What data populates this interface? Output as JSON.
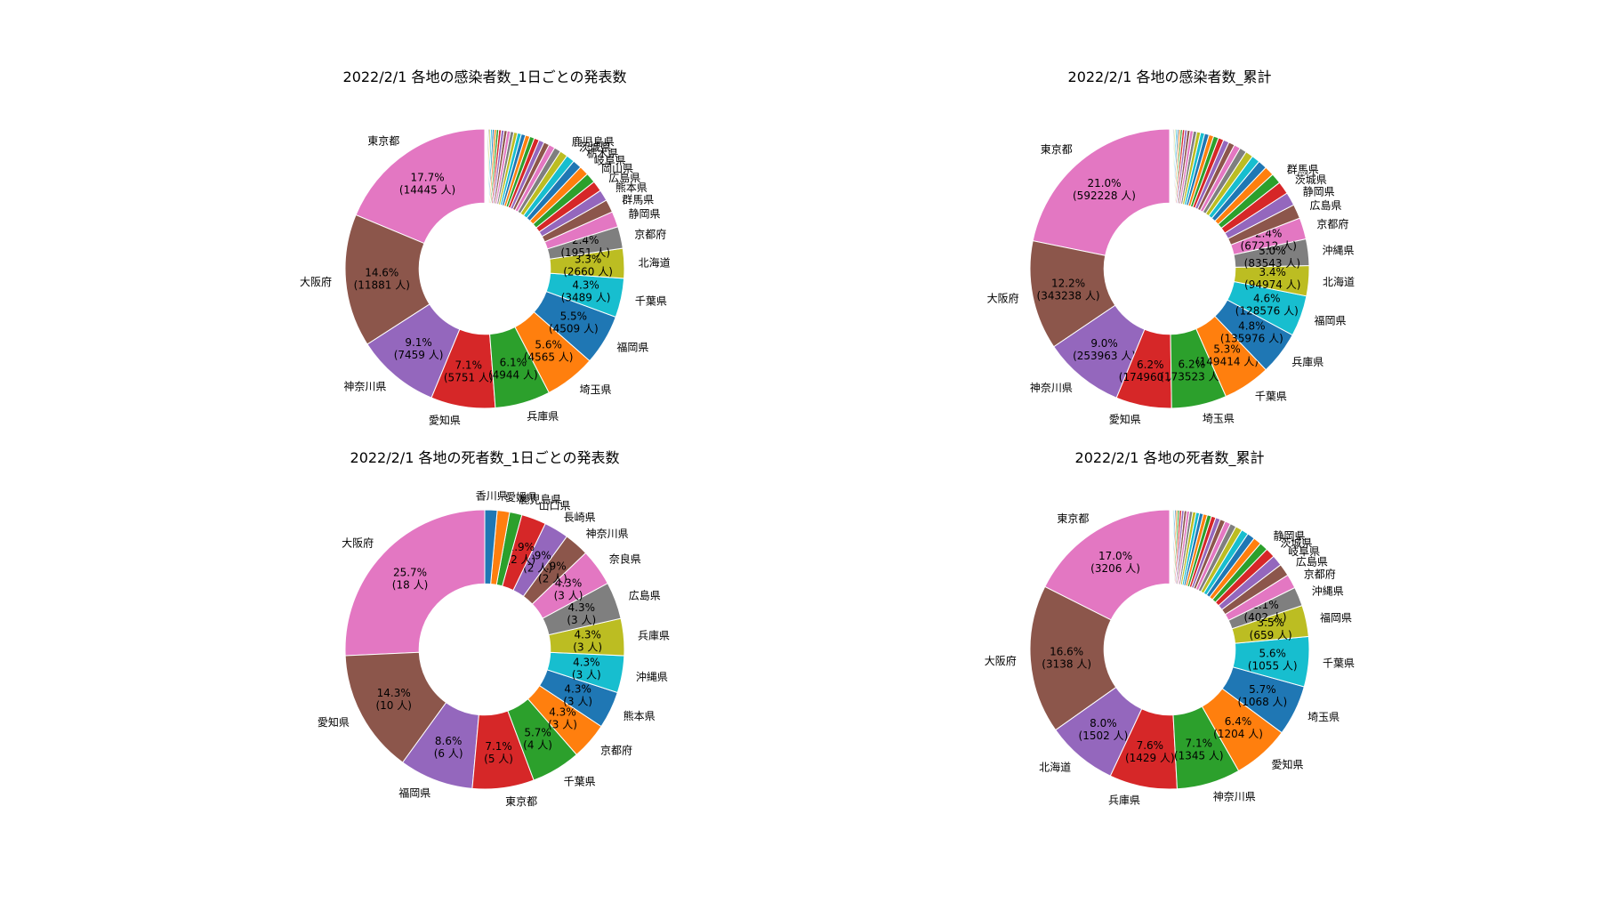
{
  "chart_data": [
    {
      "type": "pie",
      "title": "2022/2/1 各地の感染者数_1日ごとの発表数",
      "slices": [
        {
          "label": "東京都",
          "value": 14445,
          "pct": "17.7%",
          "count": "(14445 人)",
          "color": "#e377c2"
        },
        {
          "label": "大阪府",
          "value": 11881,
          "pct": "14.6%",
          "count": "(11881 人)",
          "color": "#8c564b"
        },
        {
          "label": "神奈川県",
          "value": 7459,
          "pct": "9.1%",
          "count": "(7459 人)",
          "color": "#9467bd"
        },
        {
          "label": "愛知県",
          "value": 5751,
          "pct": "7.1%",
          "count": "(5751 人)",
          "color": "#d62728"
        },
        {
          "label": "兵庫県",
          "value": 4944,
          "pct": "6.1%",
          "count": "(4944 人)",
          "color": "#2ca02c"
        },
        {
          "label": "埼玉県",
          "value": 4565,
          "pct": "5.6%",
          "count": "(4565 人)",
          "color": "#ff7f0e"
        },
        {
          "label": "福岡県",
          "value": 4509,
          "pct": "5.5%",
          "count": "(4509 人)",
          "color": "#1f77b4"
        },
        {
          "label": "千葉県",
          "value": 3489,
          "pct": "4.3%",
          "count": "(3489 人)",
          "color": "#17becf"
        },
        {
          "label": "北海道",
          "value": 2660,
          "pct": "3.3%",
          "count": "(2660 人)",
          "color": "#bcbd22"
        },
        {
          "label": "京都府",
          "value": 1951,
          "pct": "2.4%",
          "count": "(1951 人)",
          "color": "#7f7f7f"
        },
        {
          "label": "静岡県",
          "value": 1400,
          "color": "#e377c2"
        },
        {
          "label": "群馬県",
          "value": 1150,
          "color": "#8c564b"
        },
        {
          "label": "熊本県",
          "value": 1000,
          "color": "#9467bd"
        },
        {
          "label": "広島県",
          "value": 950,
          "color": "#d62728"
        },
        {
          "label": "岡山県",
          "value": 900,
          "color": "#2ca02c"
        },
        {
          "label": "岐阜県",
          "value": 850,
          "color": "#ff7f0e"
        },
        {
          "label": "栃木県",
          "value": 800,
          "color": "#1f77b4"
        },
        {
          "label": "茨城県",
          "value": 750,
          "color": "#17becf"
        },
        {
          "label": "鹿児島県",
          "value": 700,
          "color": "#bcbd22"
        },
        {
          "label": "",
          "value": 600,
          "color": "#7f7f7f"
        },
        {
          "label": "",
          "value": 550,
          "color": "#e377c2"
        },
        {
          "label": "",
          "value": 500,
          "color": "#8c564b"
        },
        {
          "label": "",
          "value": 480,
          "color": "#9467bd"
        },
        {
          "label": "",
          "value": 450,
          "color": "#d62728"
        },
        {
          "label": "",
          "value": 420,
          "color": "#2ca02c"
        },
        {
          "label": "",
          "value": 400,
          "color": "#ff7f0e"
        },
        {
          "label": "",
          "value": 380,
          "color": "#1f77b4"
        },
        {
          "label": "",
          "value": 350,
          "color": "#17becf"
        },
        {
          "label": "",
          "value": 330,
          "color": "#bcbd22"
        },
        {
          "label": "",
          "value": 310,
          "color": "#7f7f7f"
        },
        {
          "label": "",
          "value": 290,
          "color": "#e377c2"
        },
        {
          "label": "",
          "value": 270,
          "color": "#8c564b"
        },
        {
          "label": "",
          "value": 250,
          "color": "#9467bd"
        },
        {
          "label": "",
          "value": 230,
          "color": "#d62728"
        },
        {
          "label": "",
          "value": 210,
          "color": "#2ca02c"
        },
        {
          "label": "",
          "value": 190,
          "color": "#ff7f0e"
        },
        {
          "label": "",
          "value": 170,
          "color": "#1f77b4"
        },
        {
          "label": "",
          "value": 150,
          "color": "#17becf"
        },
        {
          "label": "",
          "value": 130,
          "color": "#bcbd22"
        },
        {
          "label": "",
          "value": 110,
          "color": "#7f7f7f"
        },
        {
          "label": "",
          "value": 90,
          "color": "#e377c2"
        },
        {
          "label": "",
          "value": 70,
          "color": "#8c564b"
        },
        {
          "label": "",
          "value": 50,
          "color": "#9467bd"
        },
        {
          "label": "",
          "value": 30,
          "color": "#d62728"
        },
        {
          "label": "",
          "value": 20,
          "color": "#2ca02c"
        },
        {
          "label": "",
          "value": 10,
          "color": "#ff7f0e"
        },
        {
          "label": "",
          "value": 5,
          "color": "#1f77b4"
        }
      ]
    },
    {
      "type": "pie",
      "title": "2022/2/1 各地の感染者数_累計",
      "slices": [
        {
          "label": "東京都",
          "value": 592228,
          "pct": "21.0%",
          "count": "(592228 人)",
          "color": "#e377c2"
        },
        {
          "label": "大阪府",
          "value": 343238,
          "pct": "12.2%",
          "count": "(343238 人)",
          "color": "#8c564b"
        },
        {
          "label": "神奈川県",
          "value": 253963,
          "pct": "9.0%",
          "count": "(253963 人)",
          "color": "#9467bd"
        },
        {
          "label": "愛知県",
          "value": 174960,
          "pct": "6.2%",
          "count": "(174960 人)",
          "color": "#d62728"
        },
        {
          "label": "埼玉県",
          "value": 173523,
          "pct": "6.2%",
          "count": "(173523 人)",
          "color": "#2ca02c"
        },
        {
          "label": "千葉県",
          "value": 149414,
          "pct": "5.3%",
          "count": "(149414 人)",
          "color": "#ff7f0e"
        },
        {
          "label": "兵庫県",
          "value": 135976,
          "pct": "4.8%",
          "count": "(135976 人)",
          "color": "#1f77b4"
        },
        {
          "label": "福岡県",
          "value": 128576,
          "pct": "4.6%",
          "count": "(128576 人)",
          "color": "#17becf"
        },
        {
          "label": "北海道",
          "value": 94974,
          "pct": "3.4%",
          "count": "(94974 人)",
          "color": "#bcbd22"
        },
        {
          "label": "沖縄県",
          "value": 83543,
          "pct": "3.0%",
          "count": "(83543 人)",
          "color": "#7f7f7f"
        },
        {
          "label": "京都府",
          "value": 67212,
          "pct": "2.4%",
          "count": "(67212 人)",
          "color": "#e377c2"
        },
        {
          "label": "広島県",
          "value": 45000,
          "color": "#8c564b"
        },
        {
          "label": "静岡県",
          "value": 42000,
          "color": "#9467bd"
        },
        {
          "label": "茨城県",
          "value": 40000,
          "color": "#d62728"
        },
        {
          "label": "群馬県",
          "value": 33000,
          "color": "#2ca02c"
        },
        {
          "label": "",
          "value": 30000,
          "color": "#ff7f0e"
        },
        {
          "label": "",
          "value": 28000,
          "color": "#1f77b4"
        },
        {
          "label": "",
          "value": 26000,
          "color": "#17becf"
        },
        {
          "label": "",
          "value": 24000,
          "color": "#bcbd22"
        },
        {
          "label": "",
          "value": 22000,
          "color": "#7f7f7f"
        },
        {
          "label": "",
          "value": 20000,
          "color": "#e377c2"
        },
        {
          "label": "",
          "value": 19000,
          "color": "#8c564b"
        },
        {
          "label": "",
          "value": 18000,
          "color": "#9467bd"
        },
        {
          "label": "",
          "value": 17000,
          "color": "#d62728"
        },
        {
          "label": "",
          "value": 16000,
          "color": "#2ca02c"
        },
        {
          "label": "",
          "value": 15000,
          "color": "#ff7f0e"
        },
        {
          "label": "",
          "value": 14000,
          "color": "#1f77b4"
        },
        {
          "label": "",
          "value": 13000,
          "color": "#17becf"
        },
        {
          "label": "",
          "value": 12000,
          "color": "#bcbd22"
        },
        {
          "label": "",
          "value": 11000,
          "color": "#7f7f7f"
        },
        {
          "label": "",
          "value": 10000,
          "color": "#e377c2"
        },
        {
          "label": "",
          "value": 9000,
          "color": "#8c564b"
        },
        {
          "label": "",
          "value": 8000,
          "color": "#9467bd"
        },
        {
          "label": "",
          "value": 7000,
          "color": "#d62728"
        },
        {
          "label": "",
          "value": 6000,
          "color": "#2ca02c"
        },
        {
          "label": "",
          "value": 5500,
          "color": "#ff7f0e"
        },
        {
          "label": "",
          "value": 5000,
          "color": "#1f77b4"
        },
        {
          "label": "",
          "value": 4500,
          "color": "#17becf"
        },
        {
          "label": "",
          "value": 4000,
          "color": "#bcbd22"
        },
        {
          "label": "",
          "value": 3500,
          "color": "#7f7f7f"
        },
        {
          "label": "",
          "value": 3000,
          "color": "#e377c2"
        },
        {
          "label": "",
          "value": 2500,
          "color": "#8c564b"
        },
        {
          "label": "",
          "value": 2000,
          "color": "#9467bd"
        },
        {
          "label": "",
          "value": 1500,
          "color": "#d62728"
        },
        {
          "label": "",
          "value": 1000,
          "color": "#2ca02c"
        },
        {
          "label": "",
          "value": 800,
          "color": "#ff7f0e"
        },
        {
          "label": "",
          "value": 500,
          "color": "#1f77b4"
        }
      ]
    },
    {
      "type": "pie",
      "title": "2022/2/1 各地の死者数_1日ごとの発表数",
      "slices": [
        {
          "label": "大阪府",
          "value": 18,
          "pct": "25.7%",
          "count": "(18 人)",
          "color": "#e377c2"
        },
        {
          "label": "愛知県",
          "value": 10,
          "pct": "14.3%",
          "count": "(10 人)",
          "color": "#8c564b"
        },
        {
          "label": "福岡県",
          "value": 6,
          "pct": "8.6%",
          "count": "(6 人)",
          "color": "#9467bd"
        },
        {
          "label": "東京都",
          "value": 5,
          "pct": "7.1%",
          "count": "(5 人)",
          "color": "#d62728"
        },
        {
          "label": "千葉県",
          "value": 4,
          "pct": "5.7%",
          "count": "(4 人)",
          "color": "#2ca02c"
        },
        {
          "label": "京都府",
          "value": 3,
          "pct": "4.3%",
          "count": "(3 人)",
          "color": "#ff7f0e"
        },
        {
          "label": "熊本県",
          "value": 3,
          "pct": "4.3%",
          "count": "(3 人)",
          "color": "#1f77b4"
        },
        {
          "label": "沖縄県",
          "value": 3,
          "pct": "4.3%",
          "count": "(3 人)",
          "color": "#17becf"
        },
        {
          "label": "兵庫県",
          "value": 3,
          "pct": "4.3%",
          "count": "(3 人)",
          "color": "#bcbd22"
        },
        {
          "label": "広島県",
          "value": 3,
          "pct": "4.3%",
          "count": "(3 人)",
          "color": "#7f7f7f"
        },
        {
          "label": "奈良県",
          "value": 3,
          "pct": "4.3%",
          "count": "(3 人)",
          "color": "#e377c2"
        },
        {
          "label": "神奈川県",
          "value": 2,
          "pct": "2.9%",
          "count": "(2 人)",
          "color": "#8c564b"
        },
        {
          "label": "長崎県",
          "value": 2,
          "pct": "2.9%",
          "count": "(2 人)",
          "color": "#9467bd"
        },
        {
          "label": "山口県",
          "value": 2,
          "pct": "2.9%",
          "count": "(2 人)",
          "color": "#d62728"
        },
        {
          "label": "鹿児島県",
          "value": 1,
          "color": "#2ca02c"
        },
        {
          "label": "愛媛県",
          "value": 1,
          "color": "#ff7f0e"
        },
        {
          "label": "香川県",
          "value": 1,
          "color": "#1f77b4"
        }
      ]
    },
    {
      "type": "pie",
      "title": "2022/2/1 各地の死者数_累計",
      "slices": [
        {
          "label": "東京都",
          "value": 3206,
          "pct": "17.0%",
          "count": "(3206 人)",
          "color": "#e377c2"
        },
        {
          "label": "大阪府",
          "value": 3138,
          "pct": "16.6%",
          "count": "(3138 人)",
          "color": "#8c564b"
        },
        {
          "label": "北海道",
          "value": 1502,
          "pct": "8.0%",
          "count": "(1502 人)",
          "color": "#9467bd"
        },
        {
          "label": "兵庫県",
          "value": 1429,
          "pct": "7.6%",
          "count": "(1429 人)",
          "color": "#d62728"
        },
        {
          "label": "神奈川県",
          "value": 1345,
          "pct": "7.1%",
          "count": "(1345 人)",
          "color": "#2ca02c"
        },
        {
          "label": "愛知県",
          "value": 1204,
          "pct": "6.4%",
          "count": "(1204 人)",
          "color": "#ff7f0e"
        },
        {
          "label": "埼玉県",
          "value": 1068,
          "pct": "5.7%",
          "count": "(1068 人)",
          "color": "#1f77b4"
        },
        {
          "label": "千葉県",
          "value": 1055,
          "pct": "5.6%",
          "count": "(1055 人)",
          "color": "#17becf"
        },
        {
          "label": "福岡県",
          "value": 659,
          "pct": "3.5%",
          "count": "(659 人)",
          "color": "#bcbd22"
        },
        {
          "label": "沖縄県",
          "value": 402,
          "pct": "2.1%",
          "count": "(402 人)",
          "color": "#7f7f7f"
        },
        {
          "label": "京都府",
          "value": 300,
          "color": "#e377c2"
        },
        {
          "label": "広島県",
          "value": 260,
          "color": "#8c564b"
        },
        {
          "label": "岐阜県",
          "value": 230,
          "color": "#9467bd"
        },
        {
          "label": "茨城県",
          "value": 200,
          "color": "#d62728"
        },
        {
          "label": "静岡県",
          "value": 180,
          "color": "#2ca02c"
        },
        {
          "label": "",
          "value": 170,
          "color": "#ff7f0e"
        },
        {
          "label": "",
          "value": 160,
          "color": "#1f77b4"
        },
        {
          "label": "",
          "value": 150,
          "color": "#17becf"
        },
        {
          "label": "",
          "value": 140,
          "color": "#bcbd22"
        },
        {
          "label": "",
          "value": 130,
          "color": "#7f7f7f"
        },
        {
          "label": "",
          "value": 120,
          "color": "#e377c2"
        },
        {
          "label": "",
          "value": 110,
          "color": "#8c564b"
        },
        {
          "label": "",
          "value": 100,
          "color": "#9467bd"
        },
        {
          "label": "",
          "value": 95,
          "color": "#d62728"
        },
        {
          "label": "",
          "value": 90,
          "color": "#2ca02c"
        },
        {
          "label": "",
          "value": 85,
          "color": "#ff7f0e"
        },
        {
          "label": "",
          "value": 80,
          "color": "#1f77b4"
        },
        {
          "label": "",
          "value": 75,
          "color": "#17becf"
        },
        {
          "label": "",
          "value": 70,
          "color": "#bcbd22"
        },
        {
          "label": "",
          "value": 65,
          "color": "#7f7f7f"
        },
        {
          "label": "",
          "value": 60,
          "color": "#e377c2"
        },
        {
          "label": "",
          "value": 55,
          "color": "#8c564b"
        },
        {
          "label": "",
          "value": 50,
          "color": "#9467bd"
        },
        {
          "label": "",
          "value": 45,
          "color": "#d62728"
        },
        {
          "label": "",
          "value": 40,
          "color": "#2ca02c"
        },
        {
          "label": "",
          "value": 35,
          "color": "#ff7f0e"
        },
        {
          "label": "",
          "value": 30,
          "color": "#1f77b4"
        },
        {
          "label": "",
          "value": 25,
          "color": "#17becf"
        },
        {
          "label": "",
          "value": 20,
          "color": "#bcbd22"
        },
        {
          "label": "",
          "value": 15,
          "color": "#7f7f7f"
        },
        {
          "label": "",
          "value": 12,
          "color": "#e377c2"
        },
        {
          "label": "",
          "value": 10,
          "color": "#8c564b"
        },
        {
          "label": "",
          "value": 8,
          "color": "#9467bd"
        },
        {
          "label": "",
          "value": 6,
          "color": "#d62728"
        },
        {
          "label": "",
          "value": 4,
          "color": "#2ca02c"
        },
        {
          "label": "",
          "value": 2,
          "color": "#ff7f0e"
        },
        {
          "label": "",
          "value": 1,
          "color": "#1f77b4"
        }
      ]
    }
  ]
}
